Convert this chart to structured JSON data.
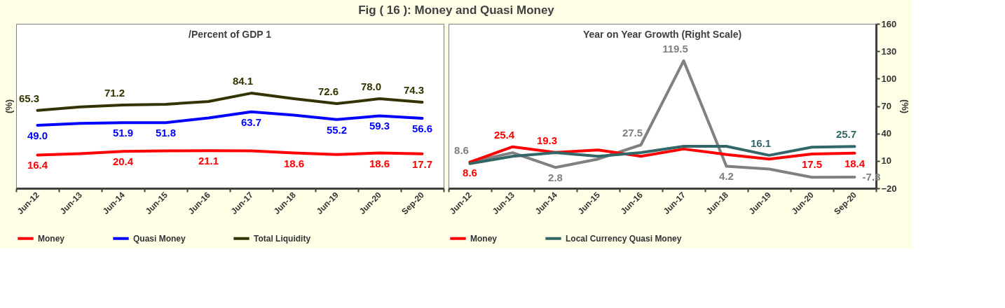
{
  "chart_data": [
    {
      "type": "line",
      "title": "Fig ( 16 ): Money and Quasi Money",
      "subtitle": "/Percent  of GDP 1",
      "ylabel": "(%)",
      "categories": [
        "Jun-12",
        "Jun-13",
        "Jun-14",
        "Jun-15",
        "Jun-16",
        "Jun-17",
        "Jun-18",
        "Jun-19",
        "Jun-20",
        "Sep-20"
      ],
      "series": [
        {
          "name": "Money",
          "color": "#ff0000",
          "values": [
            16.4,
            18,
            20.4,
            21,
            21.1,
            21,
            18.6,
            17,
            18.6,
            17.7
          ],
          "value_labels": [
            "16.4",
            null,
            "20.4",
            null,
            "21.1",
            null,
            "18.6",
            null,
            "18.6",
            "17.7"
          ]
        },
        {
          "name": "Quasi Money",
          "color": "#0000ff",
          "values": [
            49.0,
            51,
            51.9,
            51.8,
            57,
            63.7,
            60,
            55.2,
            59.3,
            56.6
          ],
          "value_labels": [
            "49.0",
            null,
            "51.9",
            "51.8",
            null,
            "63.7",
            null,
            "55.2",
            "59.3",
            "56.6"
          ]
        },
        {
          "name": "Total Liquidity",
          "color": "#333300",
          "values": [
            65.3,
            69,
            71.2,
            72,
            75,
            84.1,
            78,
            72.6,
            78.0,
            74.3
          ],
          "value_labels": [
            "65.3",
            null,
            "71.2",
            null,
            null,
            "84.1",
            null,
            "72.6",
            "78.0",
            "74.3"
          ]
        }
      ],
      "ylim": [
        -20,
        160
      ],
      "tick_labels": "x",
      "legend": "bottom",
      "grid": false,
      "marker": "none",
      "line_style": "solid"
    },
    {
      "type": "line",
      "subtitle": "Year on Year Growth (Right Scale)",
      "y2label": "(%)",
      "categories": [
        "Jun-12",
        "Jun-13",
        "Jun-14",
        "Jun-15",
        "Jun-16",
        "Jun-17",
        "Jun-18",
        "Jun-19",
        "Jun-20",
        "Sep-20"
      ],
      "series": [
        {
          "color": "#808080",
          "axis": "y2",
          "values": [
            8.6,
            19,
            2.8,
            12,
            27.5,
            119.5,
            4.2,
            1,
            -8,
            -7.8
          ],
          "value_labels": [
            "8.6",
            null,
            "2.8",
            null,
            "27.5",
            "119.5",
            "4.2",
            null,
            null,
            "-7.8"
          ]
        },
        {
          "name": "Money",
          "color": "#ff0000",
          "axis": "y2",
          "values": [
            8.6,
            25.4,
            19.3,
            22,
            15,
            23,
            17,
            12,
            17.5,
            18.4
          ],
          "value_labels": [
            "8.6",
            "25.4",
            "19.3",
            null,
            null,
            null,
            null,
            null,
            "17.5",
            "18.4"
          ]
        },
        {
          "name": "Local Currency Quasi Money",
          "color": "#336666",
          "axis": "y2",
          "values": [
            7,
            15,
            19,
            15,
            19,
            26,
            26,
            16.1,
            25,
            25.7
          ],
          "value_labels": [
            null,
            null,
            null,
            null,
            null,
            null,
            null,
            "16.1",
            null,
            "25.7"
          ]
        }
      ],
      "y2lim": [
        -20,
        160
      ],
      "y2ticks": [
        -20,
        10,
        40,
        70,
        100,
        130,
        160
      ],
      "legend": "bottom",
      "grid": false,
      "marker": "none",
      "line_style": "solid"
    }
  ]
}
